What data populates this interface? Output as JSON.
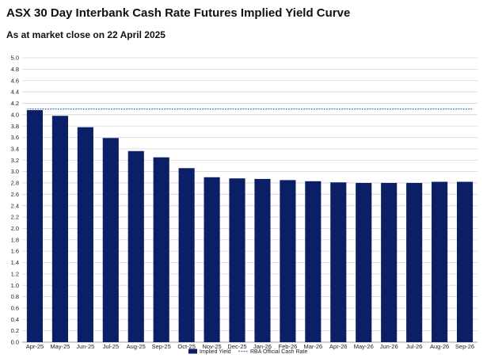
{
  "chart_data": {
    "type": "bar",
    "title": "ASX 30 Day Interbank Cash Rate Futures Implied Yield Curve",
    "subtitle": "As at market close on 22 April 2025",
    "xlabel": "",
    "ylabel": "",
    "ylim": [
      0,
      5.0
    ],
    "ytick_step": 0.2,
    "yticks": [
      "0.0",
      "0.2",
      "0.4",
      "0.6",
      "0.8",
      "1.0",
      "1.2",
      "1.4",
      "1.6",
      "1.8",
      "2.0",
      "2.2",
      "2.4",
      "2.6",
      "2.8",
      "3.0",
      "3.2",
      "3.4",
      "3.6",
      "3.8",
      "4.0",
      "4.2",
      "4.4",
      "4.6",
      "4.8",
      "5.0"
    ],
    "grid": true,
    "legend_placement": "bottom-center",
    "categories": [
      "Apr-25",
      "May-25",
      "Jun-25",
      "Jul-25",
      "Aug-25",
      "Sep-25",
      "Oct-25",
      "Nov-25",
      "Dec-25",
      "Jan-26",
      "Feb-26",
      "Mar-26",
      "Apr-26",
      "May-26",
      "Jun-26",
      "Jul-26",
      "Aug-26",
      "Sep-26"
    ],
    "series": [
      {
        "name": "Implied Yield",
        "kind": "bar",
        "color": "#0b1f66",
        "values": [
          4.08,
          3.98,
          3.78,
          3.59,
          3.36,
          3.25,
          3.06,
          2.9,
          2.88,
          2.87,
          2.85,
          2.83,
          2.81,
          2.8,
          2.8,
          2.8,
          2.82,
          2.82
        ]
      },
      {
        "name": "RBA Official Cash Rate",
        "kind": "line",
        "style": "dashed",
        "color": "#4a7fc1",
        "value": 4.1
      }
    ]
  }
}
